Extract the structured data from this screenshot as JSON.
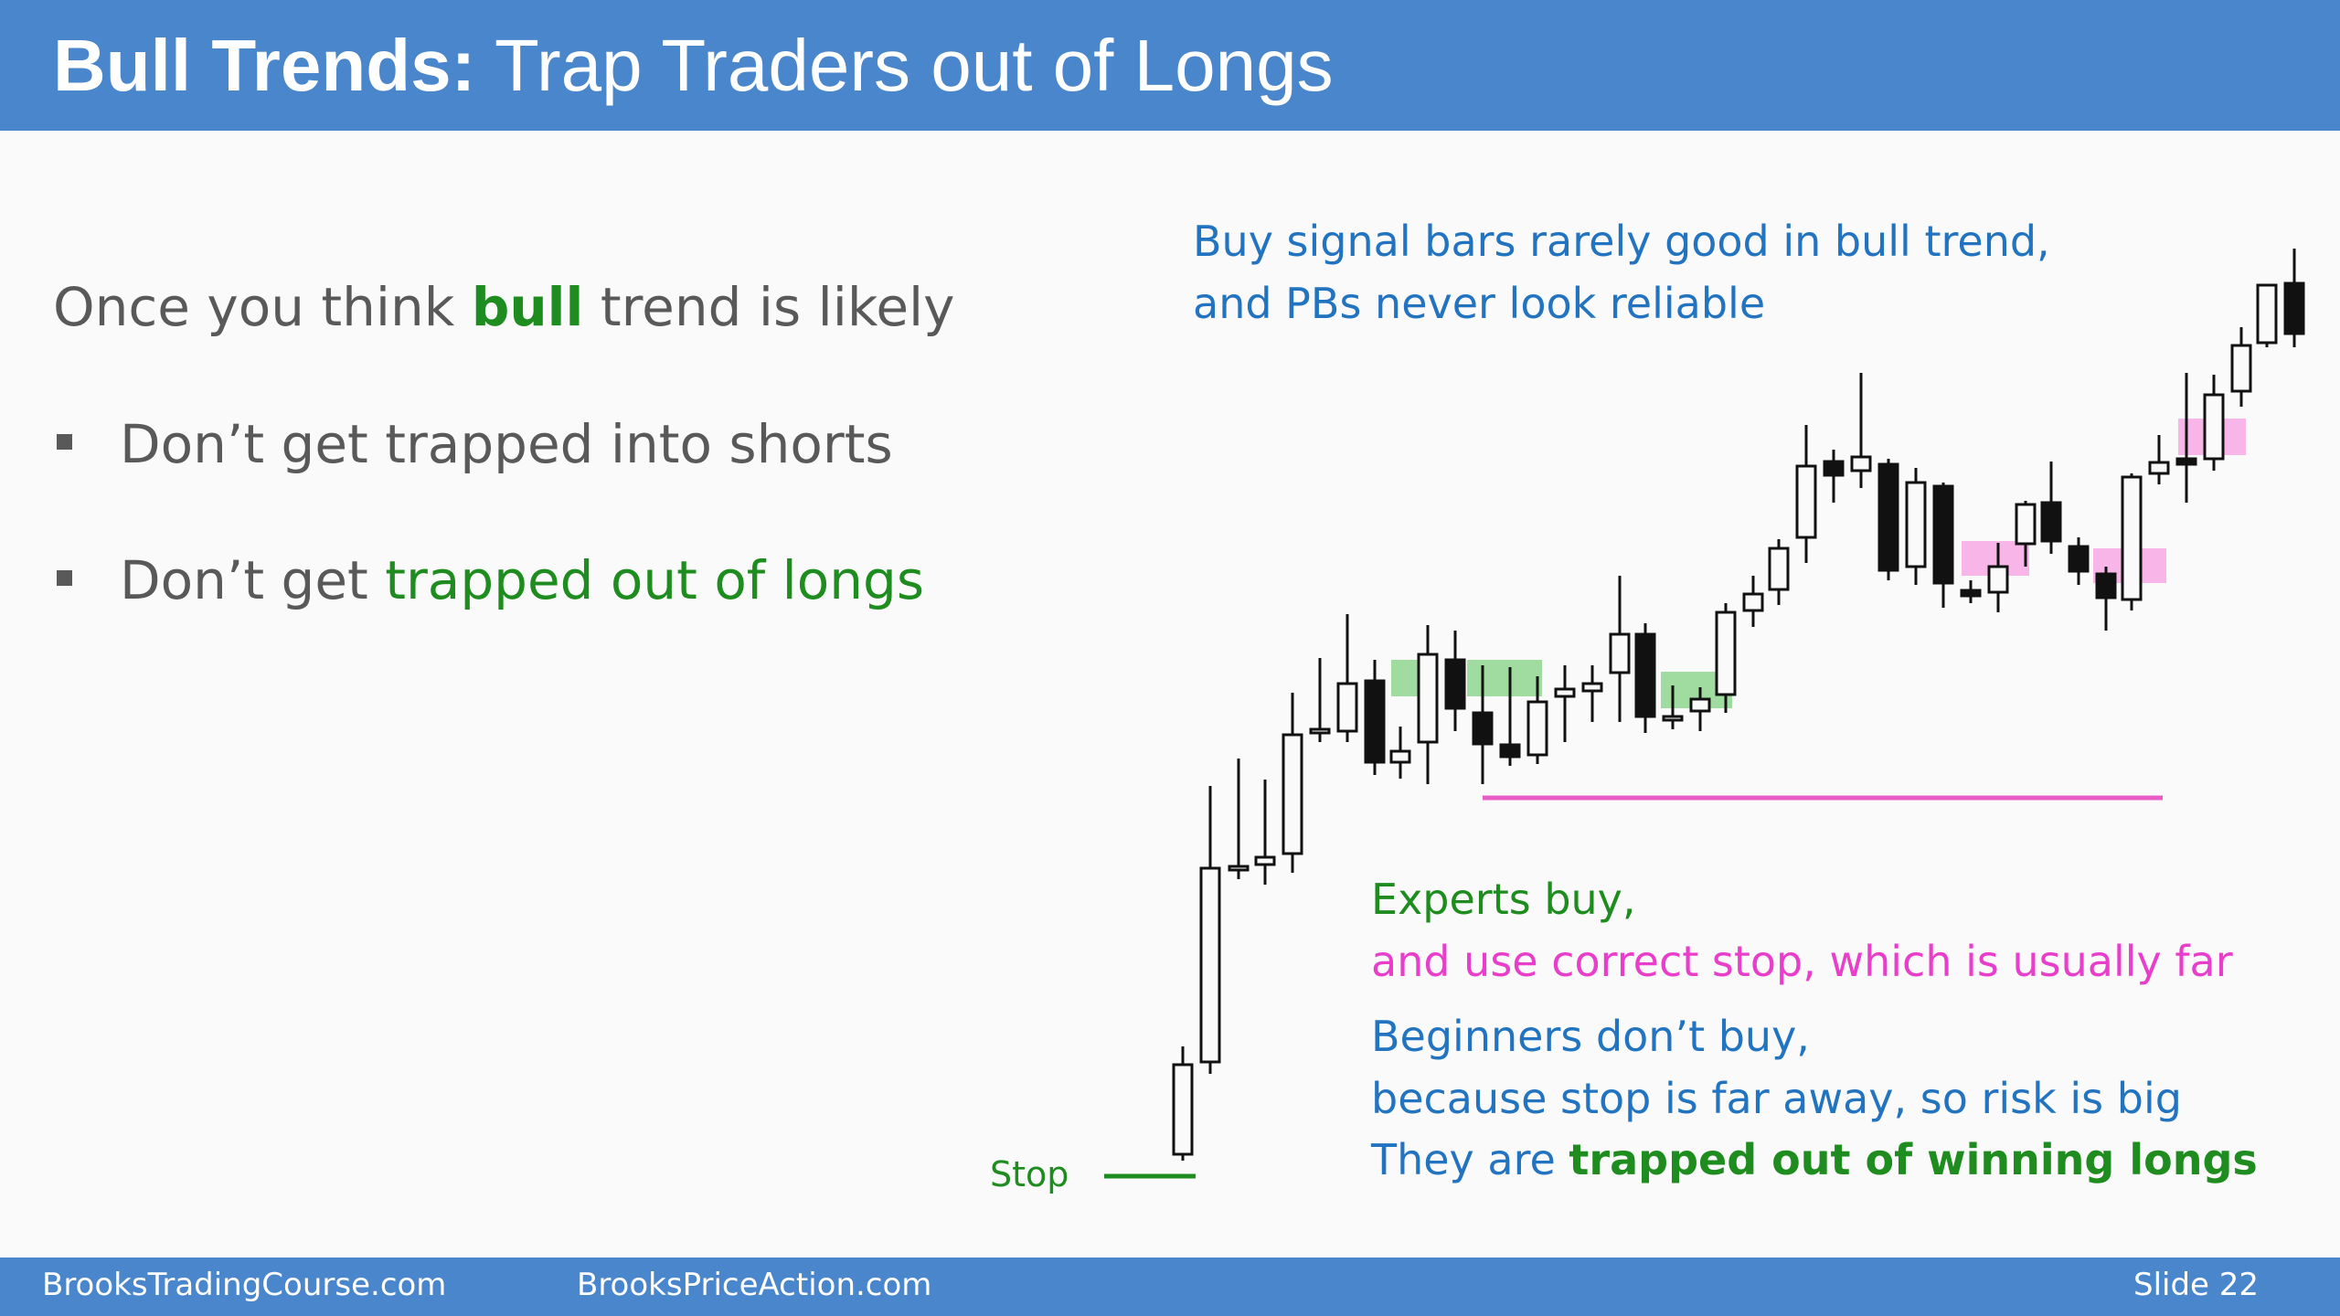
{
  "slide": {
    "title_bold": "Bull Trends:",
    "title_rest": " Trap Traders out of Longs",
    "intro": {
      "before": "Once you think ",
      "highlight": "bull",
      "after": " trend is likely"
    },
    "bullets": [
      {
        "text": "Don’t get trapped into shorts",
        "highlight": ""
      },
      {
        "text": "Don’t get ",
        "highlight": "trapped out of longs"
      }
    ],
    "note_top": [
      "Buy signal bars rarely good in bull trend,",
      "and PBs never look reliable"
    ],
    "note_experts": "Experts buy,",
    "note_stop_far": "and use correct stop, which is usually far",
    "note_beginners": [
      "Beginners don’t buy,",
      "because stop is far away, so risk is big"
    ],
    "note_trapped": {
      "before": "They are ",
      "highlight": "trapped out of winning longs"
    },
    "stop_label": "Stop",
    "footer": {
      "left": "BrooksTradingCourse.com",
      "middle": "BrooksPriceAction.com",
      "right": "Slide  22"
    }
  },
  "colors": {
    "title_bar": "#4a86cc",
    "green_text": "#1e8c1e",
    "magenta": "#e83ecb",
    "blue_text": "#2273c0",
    "gray_text": "#595959",
    "green_zone": "#8fd68f",
    "pink_zone": "#f7a8e4"
  }
}
